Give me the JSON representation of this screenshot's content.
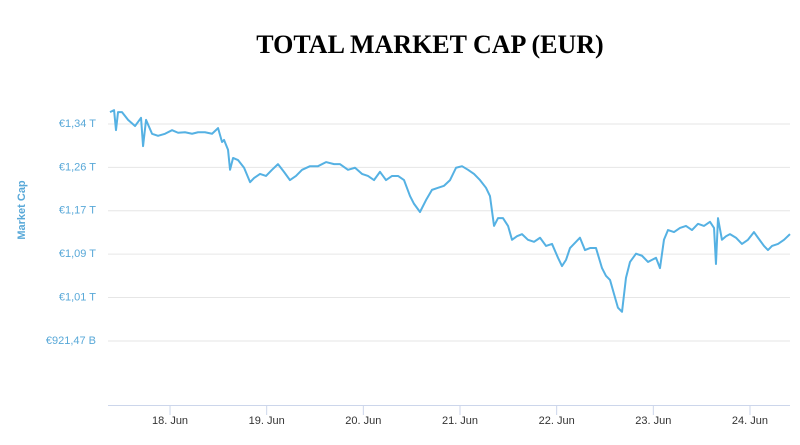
{
  "chart_data": {
    "type": "line",
    "title": "TOTAL MARKET CAP (EUR)",
    "y_label": "Market Cap",
    "color": "#55b1e3",
    "axis_color": "#58a8d8",
    "grid": true,
    "xlim": [
      17.379,
      24.414
    ],
    "ylim": [
      0.797,
      1.4285
    ],
    "xticks": [
      {
        "value": 18,
        "label": "18. Jun"
      },
      {
        "value": 19,
        "label": "19. Jun"
      },
      {
        "value": 20,
        "label": "20. Jun"
      },
      {
        "value": 21,
        "label": "21. Jun"
      },
      {
        "value": 22,
        "label": "22. Jun"
      },
      {
        "value": 23,
        "label": "23. Jun"
      },
      {
        "value": 24,
        "label": "24. Jun"
      }
    ],
    "yticks": [
      {
        "value": 0.92147,
        "label": "€921,47 B"
      },
      {
        "value": 1.0058,
        "label": "€1,01 T"
      },
      {
        "value": 1.0901,
        "label": "€1,09 T"
      },
      {
        "value": 1.1744,
        "label": "€1,17 T"
      },
      {
        "value": 1.2587,
        "label": "€1,26 T"
      },
      {
        "value": 1.343,
        "label": "€1,34 T"
      }
    ],
    "x": [
      17.379,
      17.421,
      17.441,
      17.462,
      17.503,
      17.566,
      17.638,
      17.7,
      17.721,
      17.752,
      17.814,
      17.876,
      17.948,
      18.021,
      18.083,
      18.155,
      18.228,
      18.29,
      18.362,
      18.435,
      18.497,
      18.538,
      18.559,
      18.6,
      18.621,
      18.652,
      18.703,
      18.766,
      18.828,
      18.869,
      18.931,
      18.993,
      19.055,
      19.117,
      19.179,
      19.241,
      19.303,
      19.366,
      19.448,
      19.531,
      19.614,
      19.697,
      19.759,
      19.841,
      19.914,
      19.986,
      20.048,
      20.11,
      20.172,
      20.235,
      20.297,
      20.359,
      20.421,
      20.483,
      20.524,
      20.586,
      20.648,
      20.71,
      20.772,
      20.835,
      20.897,
      20.959,
      21.021,
      21.083,
      21.145,
      21.207,
      21.269,
      21.31,
      21.352,
      21.393,
      21.445,
      21.497,
      21.538,
      21.59,
      21.641,
      21.703,
      21.766,
      21.828,
      21.89,
      21.952,
      22.014,
      22.055,
      22.097,
      22.138,
      22.2,
      22.241,
      22.293,
      22.345,
      22.407,
      22.469,
      22.51,
      22.552,
      22.593,
      22.634,
      22.676,
      22.717,
      22.759,
      22.821,
      22.883,
      22.945,
      22.986,
      23.028,
      23.069,
      23.11,
      23.152,
      23.214,
      23.276,
      23.338,
      23.4,
      23.462,
      23.524,
      23.586,
      23.628,
      23.648,
      23.669,
      23.71,
      23.752,
      23.793,
      23.855,
      23.917,
      23.979,
      24.041,
      24.083,
      24.145,
      24.186,
      24.228,
      24.29,
      24.352,
      24.414
    ],
    "values": [
      1.366,
      1.37,
      1.331,
      1.366,
      1.366,
      1.351,
      1.339,
      1.355,
      1.3,
      1.351,
      1.324,
      1.32,
      1.324,
      1.331,
      1.326,
      1.327,
      1.324,
      1.327,
      1.327,
      1.324,
      1.335,
      1.308,
      1.312,
      1.293,
      1.254,
      1.277,
      1.273,
      1.258,
      1.23,
      1.238,
      1.246,
      1.242,
      1.254,
      1.265,
      1.25,
      1.234,
      1.242,
      1.254,
      1.261,
      1.261,
      1.269,
      1.265,
      1.265,
      1.254,
      1.258,
      1.246,
      1.242,
      1.234,
      1.25,
      1.234,
      1.242,
      1.242,
      1.234,
      1.203,
      1.188,
      1.172,
      1.195,
      1.215,
      1.219,
      1.223,
      1.234,
      1.258,
      1.261,
      1.254,
      1.246,
      1.234,
      1.219,
      1.203,
      1.145,
      1.16,
      1.16,
      1.145,
      1.118,
      1.125,
      1.129,
      1.118,
      1.114,
      1.122,
      1.106,
      1.11,
      1.083,
      1.067,
      1.079,
      1.102,
      1.114,
      1.122,
      1.098,
      1.102,
      1.102,
      1.063,
      1.048,
      1.04,
      1.013,
      0.986,
      0.978,
      1.044,
      1.075,
      1.091,
      1.087,
      1.075,
      1.079,
      1.083,
      1.063,
      1.118,
      1.137,
      1.133,
      1.141,
      1.145,
      1.137,
      1.149,
      1.145,
      1.153,
      1.141,
      1.071,
      1.16,
      1.118,
      1.125,
      1.129,
      1.122,
      1.11,
      1.118,
      1.133,
      1.122,
      1.106,
      1.098,
      1.106,
      1.11,
      1.118,
      1.129
    ]
  }
}
